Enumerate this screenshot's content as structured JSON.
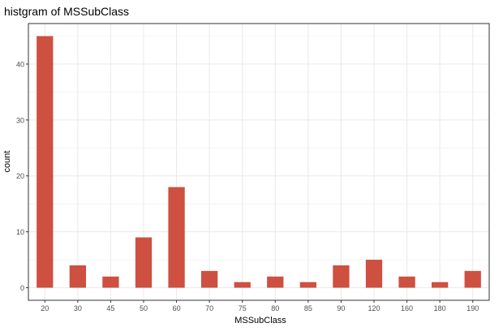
{
  "chart_data": {
    "type": "bar",
    "title": "histgram of MSSubClass",
    "xlabel": "MSSubClass",
    "ylabel": "count",
    "categories": [
      "20",
      "30",
      "45",
      "50",
      "60",
      "70",
      "75",
      "80",
      "85",
      "90",
      "120",
      "160",
      "180",
      "190"
    ],
    "values": [
      45,
      4,
      2,
      9,
      18,
      3,
      1,
      2,
      1,
      4,
      5,
      2,
      1,
      3
    ],
    "yticks": [
      0,
      10,
      20,
      30,
      40
    ],
    "ylim": [
      -2.25,
      47.25
    ],
    "grid": true,
    "bar_color": "#cd5040",
    "grid_color": "#ebebeb",
    "panel_border_color": "#333333"
  }
}
